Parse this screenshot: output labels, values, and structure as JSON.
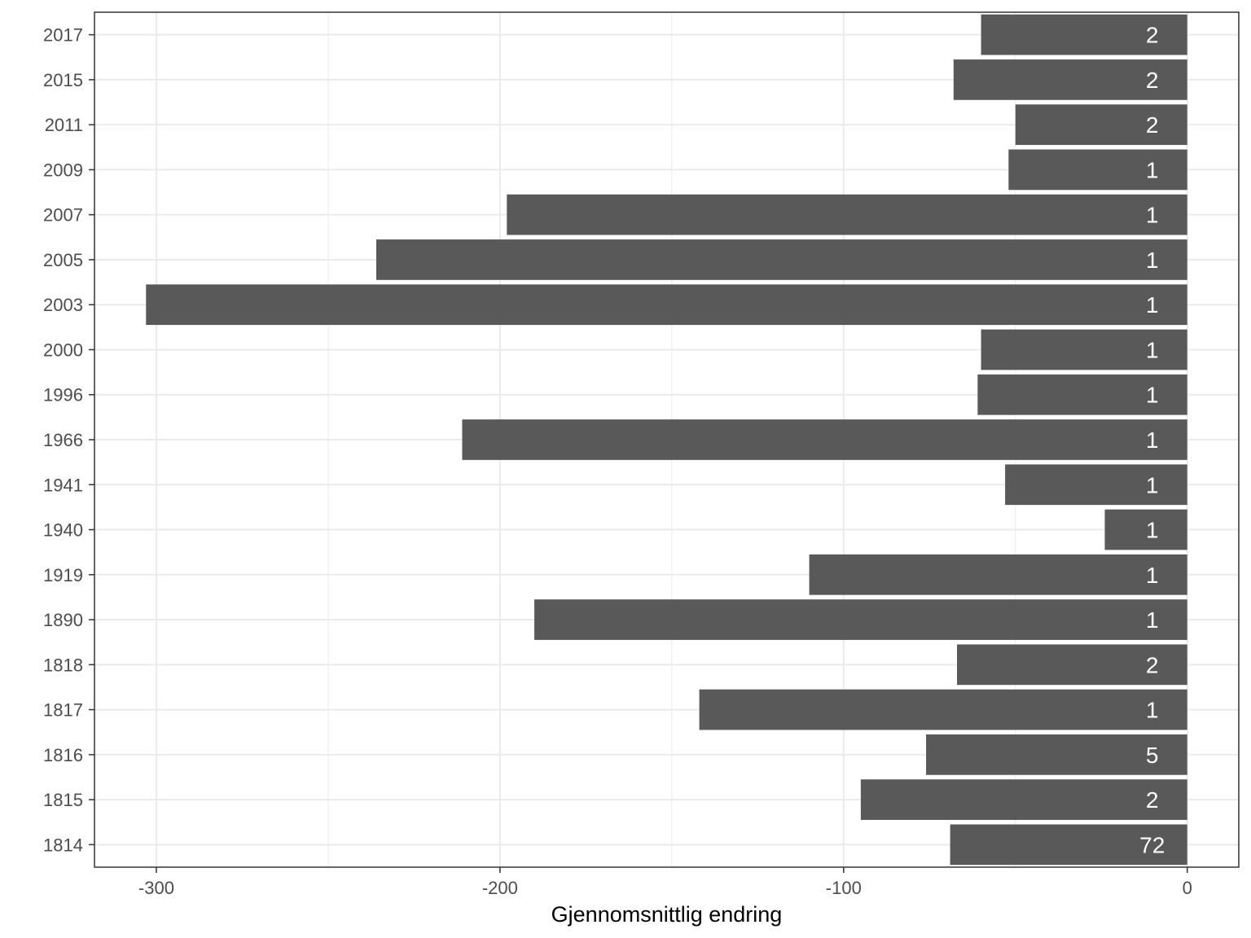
{
  "chart_data": {
    "type": "bar",
    "orientation": "horizontal",
    "xlabel": "Gjennomsnittlig endring",
    "ylabel": "",
    "xlim": [
      -318,
      15
    ],
    "xticks": [
      -300,
      -200,
      -100,
      0
    ],
    "xtick_labels": [
      "-300",
      "-200",
      "-100",
      "0"
    ],
    "categories": [
      "2017",
      "2015",
      "2011",
      "2009",
      "2007",
      "2005",
      "2003",
      "2000",
      "1996",
      "1966",
      "1941",
      "1940",
      "1919",
      "1890",
      "1818",
      "1817",
      "1816",
      "1815",
      "1814"
    ],
    "values": [
      -60,
      -68,
      -50,
      -52,
      -198,
      -236,
      -303,
      -60,
      -61,
      -211,
      -53,
      -24,
      -110,
      -190,
      -67,
      -142,
      -76,
      -95,
      -69
    ],
    "labels": [
      "2",
      "2",
      "2",
      "1",
      "1",
      "1",
      "1",
      "1",
      "1",
      "1",
      "1",
      "1",
      "1",
      "1",
      "2",
      "1",
      "5",
      "2",
      "72"
    ],
    "grid": true,
    "legend": "none",
    "colors": {
      "bar": "#595959",
      "grid": "#ebebeb",
      "panel_border": "#333333",
      "tick_text": "#4d4d4d",
      "bar_label": "#ffffff"
    }
  }
}
